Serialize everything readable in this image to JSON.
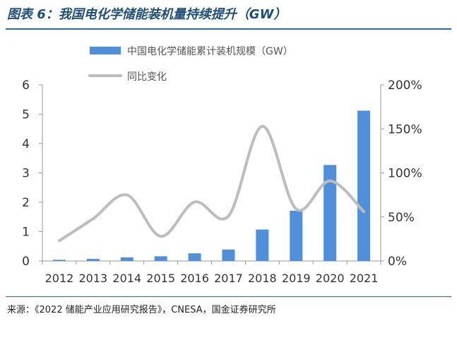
{
  "header": {
    "title": "图表 6：我国电化学储能装机量持续提升（GW）"
  },
  "footer": {
    "source": "来源：《2022 储能产业应用研究报告》，CNESA，国金证券研究所"
  },
  "colors": {
    "title": "#1f4e79",
    "rule": "#2f6aa8",
    "bar": "#4f8fdc",
    "line": "#bdbdbd",
    "axis": "#999999",
    "text": "#333333"
  },
  "chart_data": {
    "type": "bar",
    "categories": [
      "2012",
      "2013",
      "2014",
      "2015",
      "2016",
      "2017",
      "2018",
      "2019",
      "2020",
      "2021"
    ],
    "series": [
      {
        "name": "中国电化学储能累计装机规模（GW）",
        "type": "bar",
        "axis": "left",
        "values": [
          0.04,
          0.07,
          0.12,
          0.16,
          0.26,
          0.39,
          1.07,
          1.71,
          3.27,
          5.12
        ]
      },
      {
        "name": "同比变化",
        "type": "line",
        "axis": "right",
        "values": [
          23,
          48,
          75,
          28,
          67,
          51,
          153,
          59,
          91,
          56
        ]
      }
    ],
    "ylim": [
      0,
      6
    ],
    "yticks": [
      "0",
      "1",
      "2",
      "3",
      "4",
      "5",
      "6"
    ],
    "y2lim": [
      0,
      200
    ],
    "y2ticks": [
      "0%",
      "50%",
      "100%",
      "150%",
      "200%"
    ],
    "grid": false,
    "legend": "top-center"
  }
}
